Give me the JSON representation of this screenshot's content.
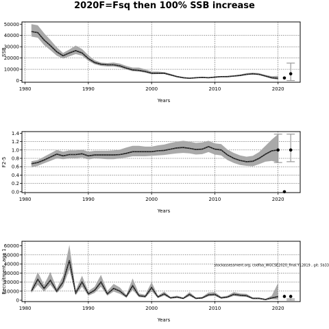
{
  "title": "2020F=Fsq then 100% SSB increase",
  "chart_data": [
    {
      "type": "area",
      "ylabel": "SSB",
      "xlabel": "Years",
      "xlim": [
        1979.5,
        2023.5
      ],
      "ylim": [
        -1500,
        52000
      ],
      "xticks": [
        1980,
        1990,
        2000,
        2010,
        2020
      ],
      "yticks": [
        0,
        10000,
        20000,
        30000,
        40000,
        50000
      ],
      "xgrid": [
        1980,
        1990,
        2000,
        2010,
        2020
      ],
      "ygrid": [
        10000,
        20000,
        30000,
        40000
      ],
      "x": [
        1981,
        1982,
        1983,
        1984,
        1985,
        1986,
        1987,
        1988,
        1989,
        1990,
        1991,
        1992,
        1993,
        1994,
        1995,
        1996,
        1997,
        1998,
        1999,
        2000,
        2001,
        2002,
        2003,
        2004,
        2005,
        2006,
        2007,
        2008,
        2009,
        2010,
        2011,
        2012,
        2013,
        2014,
        2015,
        2016,
        2017,
        2018,
        2019,
        2020
      ],
      "median": [
        43500,
        42500,
        36000,
        31000,
        25500,
        22000,
        24500,
        26500,
        24500,
        19500,
        16000,
        14500,
        14000,
        14000,
        13000,
        11000,
        9500,
        9000,
        8000,
        6500,
        6500,
        6500,
        5000,
        3500,
        2500,
        2000,
        2500,
        2800,
        2500,
        3000,
        3500,
        3500,
        4000,
        4500,
        5500,
        6000,
        5500,
        4000,
        2500,
        2000
      ],
      "lower": [
        39000,
        38000,
        31500,
        27000,
        22000,
        19500,
        21500,
        23500,
        22000,
        17500,
        14500,
        13000,
        12500,
        12500,
        11500,
        9800,
        8300,
        8000,
        7000,
        5700,
        5800,
        5800,
        4400,
        3000,
        2100,
        1700,
        2100,
        2400,
        2100,
        2500,
        3000,
        3000,
        3400,
        3900,
        4800,
        5300,
        4800,
        3300,
        1600,
        800
      ],
      "upper": [
        50000,
        49000,
        42000,
        36000,
        29500,
        24500,
        27500,
        31000,
        28000,
        22500,
        18000,
        16000,
        15500,
        16000,
        15000,
        13000,
        11500,
        11500,
        10000,
        8000,
        8000,
        7500,
        6000,
        4200,
        3200,
        2500,
        3000,
        3300,
        3000,
        3600,
        4000,
        4100,
        4700,
        5300,
        6500,
        7000,
        6500,
        5000,
        3800,
        4200
      ],
      "points": [
        {
          "x": 2021,
          "y": 2300
        },
        {
          "x": 2022,
          "y": 6000
        }
      ],
      "errorbars": [
        {
          "x": 2022,
          "low": 0,
          "high": 15500
        }
      ]
    },
    {
      "type": "area",
      "ylabel": "F2-5",
      "xlabel": "Years",
      "xlim": [
        1979.5,
        2023.5
      ],
      "ylim": [
        -0.02,
        1.44
      ],
      "xticks": [
        1980,
        1990,
        2000,
        2010,
        2020
      ],
      "yticks": [
        0.0,
        0.2,
        0.4,
        0.6,
        0.8,
        1.0,
        1.2,
        1.4
      ],
      "ytick_labels": [
        "0.0",
        "0.2",
        "0.4",
        "0.6",
        "0.8",
        "1.0",
        "1.2",
        "1.4"
      ],
      "xgrid": [
        1980,
        1990,
        2000,
        2010,
        2020
      ],
      "ygrid": [
        0.2,
        0.4,
        0.6,
        0.8,
        1.0,
        1.2
      ],
      "x": [
        1981,
        1982,
        1983,
        1984,
        1985,
        1986,
        1987,
        1988,
        1989,
        1990,
        1991,
        1992,
        1993,
        1994,
        1995,
        1996,
        1997,
        1998,
        1999,
        2000,
        2001,
        2002,
        2003,
        2004,
        2005,
        2006,
        2007,
        2008,
        2009,
        2010,
        2011,
        2012,
        2013,
        2014,
        2015,
        2016,
        2017,
        2018,
        2019,
        2020
      ],
      "median": [
        0.67,
        0.7,
        0.76,
        0.83,
        0.9,
        0.86,
        0.89,
        0.89,
        0.91,
        0.86,
        0.88,
        0.88,
        0.88,
        0.88,
        0.89,
        0.92,
        0.96,
        0.96,
        0.96,
        0.96,
        0.98,
        0.99,
        1.02,
        1.05,
        1.06,
        1.04,
        1.01,
        1.02,
        1.08,
        1.02,
        1.0,
        0.88,
        0.8,
        0.75,
        0.72,
        0.73,
        0.8,
        0.9,
        0.98,
        1.0
      ],
      "lower": [
        0.58,
        0.62,
        0.68,
        0.74,
        0.8,
        0.78,
        0.8,
        0.8,
        0.82,
        0.77,
        0.8,
        0.79,
        0.78,
        0.78,
        0.8,
        0.82,
        0.85,
        0.85,
        0.85,
        0.86,
        0.87,
        0.88,
        0.9,
        0.92,
        0.93,
        0.92,
        0.89,
        0.9,
        0.95,
        0.89,
        0.87,
        0.76,
        0.69,
        0.64,
        0.62,
        0.61,
        0.66,
        0.72,
        0.74,
        0.7
      ],
      "upper": [
        0.73,
        0.76,
        0.84,
        0.92,
        1.0,
        0.96,
        0.99,
        0.99,
        1.01,
        0.96,
        0.98,
        0.98,
        0.98,
        0.99,
        1.01,
        1.06,
        1.1,
        1.1,
        1.08,
        1.08,
        1.11,
        1.13,
        1.17,
        1.2,
        1.22,
        1.2,
        1.17,
        1.18,
        1.22,
        1.16,
        1.14,
        1.01,
        0.93,
        0.87,
        0.84,
        0.86,
        0.95,
        1.1,
        1.25,
        1.38
      ],
      "points": [
        {
          "x": 2020,
          "y": 1.0
        },
        {
          "x": 2021,
          "y": 0.0
        },
        {
          "x": 2022,
          "y": 1.0
        }
      ],
      "errorbars": [
        {
          "x": 2022,
          "low": 0.72,
          "high": 1.38
        },
        {
          "x": 2020,
          "low": 0.7,
          "high": 1.38
        }
      ]
    },
    {
      "type": "area",
      "ylabel": "Recruitment, age 1",
      "xlabel": "Years",
      "xlim": [
        1979.5,
        2023.5
      ],
      "ylim": [
        -1500,
        65000
      ],
      "xticks": [
        1980,
        1990,
        2000,
        2010,
        2020
      ],
      "yticks": [
        0,
        10000,
        20000,
        30000,
        40000,
        50000,
        60000
      ],
      "xgrid": [
        1980,
        1990,
        2000,
        2010,
        2020
      ],
      "ygrid": [
        10000,
        20000,
        30000,
        40000,
        50000
      ],
      "annotation": "stockassessment.org, codfaa_WGCSE2020_final.Y12819 , git: 5b33",
      "x": [
        1981,
        1982,
        1983,
        1984,
        1985,
        1986,
        1987,
        1988,
        1989,
        1990,
        1991,
        1992,
        1993,
        1994,
        1995,
        1996,
        1997,
        1998,
        1999,
        2000,
        2001,
        2002,
        2003,
        2004,
        2005,
        2006,
        2007,
        2008,
        2009,
        2010,
        2011,
        2012,
        2013,
        2014,
        2015,
        2016,
        2017,
        2018,
        2019,
        2020
      ],
      "median": [
        10000,
        23000,
        13000,
        22000,
        10000,
        20000,
        44000,
        8000,
        20000,
        7000,
        11000,
        20000,
        7000,
        13000,
        10000,
        4000,
        16000,
        5000,
        4000,
        14000,
        3500,
        7000,
        2500,
        3500,
        2000,
        6500,
        2000,
        2500,
        6000,
        6500,
        2500,
        3500,
        6500,
        5500,
        5000,
        2000,
        2000,
        800,
        2500,
        4000
      ],
      "lower": [
        8000,
        17000,
        9500,
        17000,
        8000,
        15000,
        34000,
        5500,
        15000,
        5000,
        8000,
        15000,
        5000,
        9500,
        7000,
        2800,
        11500,
        3500,
        2800,
        10000,
        2400,
        5000,
        1700,
        2400,
        1300,
        4500,
        1300,
        1700,
        4300,
        4700,
        1700,
        2400,
        4700,
        4000,
        3600,
        1300,
        1300,
        400,
        1200,
        800
      ],
      "upper": [
        13000,
        31000,
        17000,
        31000,
        13000,
        27000,
        61000,
        11000,
        27000,
        10000,
        15000,
        28000,
        10000,
        18000,
        14000,
        6000,
        24000,
        7500,
        6000,
        20000,
        5000,
        9500,
        3600,
        5000,
        3000,
        9000,
        3000,
        3700,
        8500,
        9000,
        3800,
        5000,
        9000,
        7500,
        7000,
        3000,
        3000,
        1500,
        5000,
        19000
      ],
      "points": [
        {
          "x": 2021,
          "y": 4200
        },
        {
          "x": 2022,
          "y": 4200
        }
      ],
      "errorbars": [
        {
          "x": 2022,
          "low": 0,
          "high": 1500
        }
      ]
    }
  ]
}
